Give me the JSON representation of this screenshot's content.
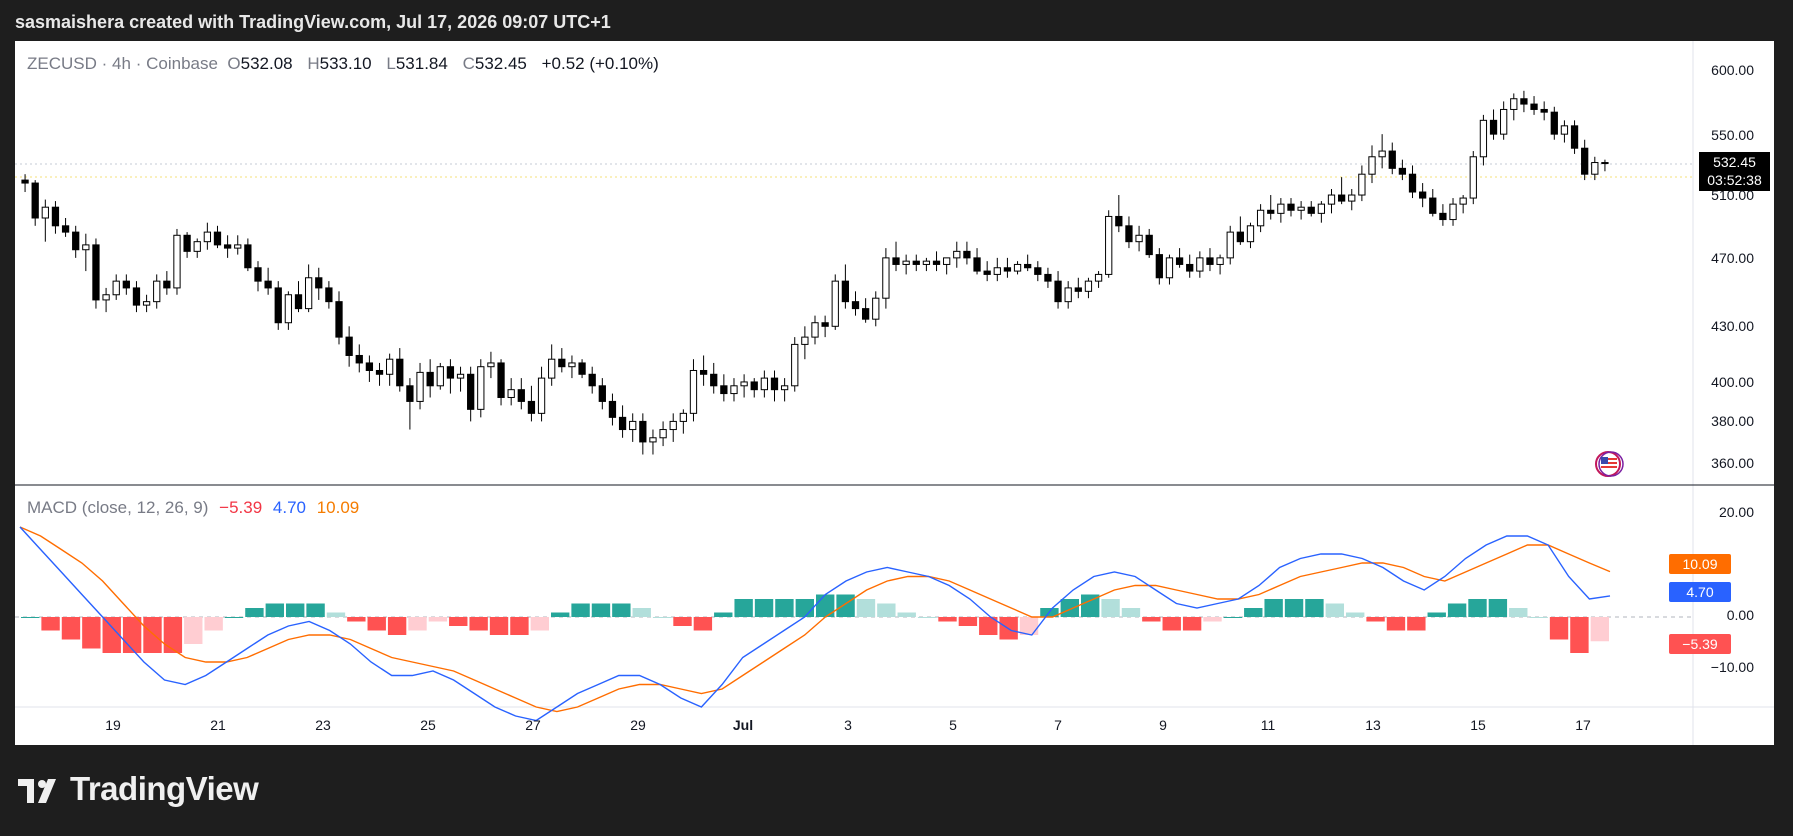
{
  "header": {
    "caption": "sasmaishera created with TradingView.com, Jul 17, 2026 09:07 UTC+1"
  },
  "legend": {
    "symbol": "ZECUSD",
    "sep1": "·",
    "interval": "4h",
    "sep2": "·",
    "exchange": "Coinbase",
    "o_label": "O",
    "o_value": "532.08",
    "h_label": "H",
    "h_value": "533.10",
    "l_label": "L",
    "l_value": "531.84",
    "c_label": "C",
    "c_value": "532.45",
    "change": "+0.52 (+0.10%)"
  },
  "macd_legend": {
    "title": "MACD (close, 12, 26, 9)",
    "histogram": "−5.39",
    "macd": "4.70",
    "signal": "10.09"
  },
  "last_price": {
    "value": "532.45",
    "countdown": "03:52:38"
  },
  "macd_badges": {
    "signal": "10.09",
    "macd": "4.70",
    "histogram": "−5.39"
  },
  "colors": {
    "up": "#ffffff",
    "down": "#000000",
    "hist_pos_strong": "#26a69a",
    "hist_pos_weak": "#b2dfdb",
    "hist_neg_strong": "#ff5252",
    "hist_neg_weak": "#ffcdd2",
    "macd_line": "#2962ff",
    "signal_line": "#ff6d00"
  },
  "footer": {
    "brand": "TradingView"
  },
  "chart_data": [
    {
      "type": "candlestick",
      "title": "ZECUSD · 4h · Coinbase",
      "y_scale": "log",
      "y_ticks": [
        "600.00",
        "550.00",
        "510.00",
        "470.00",
        "430.00",
        "400.00",
        "380.00",
        "360.00"
      ],
      "x_ticks": [
        "19",
        "21",
        "23",
        "25",
        "27",
        "29",
        "Jul",
        "3",
        "5",
        "7",
        "9",
        "11",
        "13",
        "15",
        "17"
      ],
      "x_range": [
        "Jun 17",
        "Jul 17"
      ],
      "candles_ohlc": [
        [
          520,
          524,
          512,
          518
        ],
        [
          518,
          520,
          490,
          495
        ],
        [
          495,
          507,
          480,
          502
        ],
        [
          502,
          506,
          485,
          490
        ],
        [
          490,
          495,
          483,
          486
        ],
        [
          486,
          490,
          470,
          475
        ],
        [
          475,
          485,
          462,
          478
        ],
        [
          478,
          482,
          440,
          445
        ],
        [
          445,
          452,
          438,
          448
        ],
        [
          448,
          460,
          445,
          456
        ],
        [
          456,
          460,
          448,
          452
        ],
        [
          452,
          456,
          438,
          442
        ],
        [
          442,
          448,
          438,
          444
        ],
        [
          444,
          460,
          440,
          456
        ],
        [
          456,
          462,
          448,
          452
        ],
        [
          452,
          488,
          448,
          484
        ],
        [
          484,
          486,
          470,
          474
        ],
        [
          474,
          482,
          470,
          480
        ],
        [
          480,
          492,
          475,
          486
        ],
        [
          486,
          490,
          476,
          478
        ],
        [
          478,
          484,
          470,
          476
        ],
        [
          476,
          484,
          472,
          478
        ],
        [
          478,
          482,
          462,
          464
        ],
        [
          464,
          468,
          450,
          456
        ],
        [
          456,
          464,
          448,
          452
        ],
        [
          452,
          456,
          428,
          432
        ],
        [
          432,
          450,
          428,
          448
        ],
        [
          448,
          456,
          438,
          440
        ],
        [
          440,
          466,
          438,
          458
        ],
        [
          458,
          464,
          445,
          452
        ],
        [
          452,
          456,
          440,
          444
        ],
        [
          444,
          450,
          420,
          424
        ],
        [
          424,
          430,
          408,
          414
        ],
        [
          414,
          420,
          405,
          410
        ],
        [
          410,
          414,
          400,
          406
        ],
        [
          406,
          410,
          398,
          404
        ],
        [
          404,
          415,
          398,
          412
        ],
        [
          412,
          418,
          395,
          398
        ],
        [
          398,
          402,
          376,
          390
        ],
        [
          390,
          410,
          386,
          405
        ],
        [
          405,
          412,
          392,
          398
        ],
        [
          398,
          410,
          396,
          408
        ],
        [
          408,
          412,
          394,
          402
        ],
        [
          402,
          408,
          395,
          404
        ],
        [
          404,
          408,
          380,
          386
        ],
        [
          386,
          412,
          382,
          408
        ],
        [
          408,
          416,
          402,
          410
        ],
        [
          410,
          412,
          388,
          392
        ],
        [
          392,
          402,
          388,
          396
        ],
        [
          396,
          402,
          386,
          390
        ],
        [
          390,
          398,
          380,
          384
        ],
        [
          384,
          408,
          380,
          402
        ],
        [
          402,
          420,
          398,
          412
        ],
        [
          412,
          418,
          405,
          408
        ],
        [
          408,
          414,
          402,
          410
        ],
        [
          410,
          412,
          402,
          404
        ],
        [
          404,
          408,
          394,
          398
        ],
        [
          398,
          402,
          386,
          390
        ],
        [
          390,
          394,
          378,
          382
        ],
        [
          382,
          388,
          372,
          376
        ],
        [
          376,
          384,
          370,
          380
        ],
        [
          380,
          384,
          364,
          370
        ],
        [
          370,
          376,
          364,
          372
        ],
        [
          372,
          380,
          368,
          376
        ],
        [
          376,
          384,
          370,
          380
        ],
        [
          380,
          386,
          374,
          384
        ],
        [
          384,
          412,
          380,
          406
        ],
        [
          406,
          414,
          398,
          404
        ],
        [
          404,
          410,
          394,
          398
        ],
        [
          398,
          404,
          390,
          394
        ],
        [
          394,
          402,
          390,
          398
        ],
        [
          398,
          404,
          392,
          400
        ],
        [
          400,
          402,
          392,
          396
        ],
        [
          396,
          406,
          392,
          402
        ],
        [
          402,
          406,
          390,
          396
        ],
        [
          396,
          402,
          390,
          398
        ],
        [
          398,
          424,
          395,
          420
        ],
        [
          420,
          430,
          412,
          424
        ],
        [
          424,
          436,
          420,
          432
        ],
        [
          432,
          436,
          424,
          430
        ],
        [
          430,
          460,
          428,
          456
        ],
        [
          456,
          466,
          440,
          444
        ],
        [
          444,
          450,
          436,
          440
        ],
        [
          440,
          446,
          432,
          434
        ],
        [
          434,
          450,
          430,
          446
        ],
        [
          446,
          476,
          440,
          470
        ],
        [
          470,
          480,
          462,
          466
        ],
        [
          466,
          472,
          460,
          468
        ],
        [
          468,
          472,
          462,
          466
        ],
        [
          466,
          470,
          462,
          468
        ],
        [
          468,
          474,
          462,
          466
        ],
        [
          466,
          470,
          460,
          470
        ],
        [
          470,
          480,
          464,
          474
        ],
        [
          474,
          480,
          466,
          470
        ],
        [
          470,
          476,
          460,
          462
        ],
        [
          462,
          468,
          456,
          460
        ],
        [
          460,
          470,
          456,
          464
        ],
        [
          464,
          470,
          458,
          462
        ],
        [
          462,
          468,
          460,
          466
        ],
        [
          466,
          472,
          462,
          464
        ],
        [
          464,
          468,
          456,
          460
        ],
        [
          460,
          464,
          452,
          456
        ],
        [
          456,
          462,
          440,
          444
        ],
        [
          444,
          456,
          440,
          452
        ],
        [
          452,
          458,
          446,
          450
        ],
        [
          450,
          458,
          446,
          456
        ],
        [
          456,
          462,
          452,
          460
        ],
        [
          460,
          500,
          458,
          496
        ],
        [
          496,
          510,
          486,
          490
        ],
        [
          490,
          496,
          476,
          480
        ],
        [
          480,
          490,
          474,
          484
        ],
        [
          484,
          488,
          470,
          472
        ],
        [
          472,
          476,
          454,
          458
        ],
        [
          458,
          472,
          454,
          470
        ],
        [
          470,
          476,
          464,
          466
        ],
        [
          466,
          472,
          458,
          462
        ],
        [
          462,
          474,
          458,
          470
        ],
        [
          470,
          476,
          462,
          466
        ],
        [
          466,
          472,
          460,
          470
        ],
        [
          470,
          490,
          466,
          486
        ],
        [
          486,
          496,
          478,
          480
        ],
        [
          480,
          492,
          476,
          490
        ],
        [
          490,
          504,
          486,
          500
        ],
        [
          500,
          510,
          494,
          498
        ],
        [
          498,
          508,
          492,
          504
        ],
        [
          504,
          508,
          496,
          500
        ],
        [
          500,
          506,
          494,
          502
        ],
        [
          502,
          506,
          496,
          498
        ],
        [
          498,
          506,
          492,
          504
        ],
        [
          504,
          514,
          498,
          510
        ],
        [
          510,
          522,
          504,
          506
        ],
        [
          506,
          514,
          500,
          510
        ],
        [
          510,
          530,
          506,
          524
        ],
        [
          524,
          544,
          518,
          536
        ],
        [
          536,
          552,
          528,
          540
        ],
        [
          540,
          546,
          524,
          528
        ],
        [
          528,
          534,
          520,
          524
        ],
        [
          524,
          530,
          508,
          512
        ],
        [
          512,
          518,
          502,
          508
        ],
        [
          508,
          514,
          496,
          498
        ],
        [
          498,
          504,
          490,
          494
        ],
        [
          494,
          508,
          490,
          504
        ],
        [
          504,
          510,
          498,
          508
        ],
        [
          508,
          540,
          504,
          536
        ],
        [
          536,
          566,
          530,
          562
        ],
        [
          562,
          570,
          548,
          552
        ],
        [
          552,
          576,
          548,
          570
        ],
        [
          570,
          582,
          562,
          578
        ],
        [
          578,
          584,
          568,
          574
        ],
        [
          574,
          580,
          566,
          570
        ],
        [
          570,
          576,
          562,
          568
        ],
        [
          568,
          572,
          548,
          552
        ],
        [
          552,
          562,
          546,
          558
        ],
        [
          558,
          562,
          538,
          542
        ],
        [
          542,
          548,
          520,
          524
        ],
        [
          524,
          536,
          520,
          532
        ],
        [
          532,
          534,
          526,
          532
        ]
      ]
    },
    {
      "type": "line",
      "title": "MACD (close, 12, 26, 9)",
      "y_ticks": [
        "20.00",
        "0.00",
        "−10.00"
      ],
      "series": [
        {
          "name": "MACD",
          "values": [
            20,
            15,
            10,
            5,
            0,
            -5,
            -10,
            -14,
            -15,
            -13,
            -10,
            -7,
            -4,
            -2,
            -1,
            -3,
            -6,
            -10,
            -13,
            -13,
            -12,
            -14,
            -17,
            -20,
            -22,
            -23,
            -20,
            -17,
            -15,
            -13,
            -13,
            -15,
            -18,
            -20,
            -15,
            -9,
            -6,
            -3,
            0,
            5,
            8,
            10,
            11,
            10,
            9,
            7,
            4,
            0,
            -3,
            -4,
            2,
            6,
            9,
            10,
            9,
            6,
            3,
            2,
            3,
            4,
            7,
            11,
            13,
            14,
            14,
            13,
            11,
            8,
            6,
            9,
            13,
            16,
            18,
            18,
            16,
            9,
            4,
            4.7
          ]
        },
        {
          "name": "Signal",
          "values": [
            20,
            18,
            15,
            12,
            8,
            3,
            -2,
            -6,
            -9,
            -10,
            -10,
            -9,
            -7,
            -5,
            -4,
            -4,
            -5,
            -7,
            -9,
            -10,
            -11,
            -12,
            -14,
            -16,
            -18,
            -20,
            -21,
            -20,
            -18,
            -16,
            -15,
            -15,
            -16,
            -17,
            -16,
            -13,
            -10,
            -7,
            -4,
            0,
            3,
            6,
            8,
            9,
            9,
            8,
            6,
            4,
            2,
            0,
            0,
            2,
            4,
            6,
            7,
            7,
            6,
            5,
            4,
            4,
            5,
            7,
            9,
            10,
            11,
            12,
            12,
            11,
            9,
            8,
            10,
            12,
            14,
            16,
            16,
            14,
            12,
            10.09
          ]
        },
        {
          "name": "Histogram",
          "values": [
            0,
            -3,
            -5,
            -7,
            -8,
            -8,
            -8,
            -8,
            -6,
            -3,
            0,
            2,
            3,
            3,
            3,
            1,
            -1,
            -3,
            -4,
            -3,
            -1,
            -2,
            -3,
            -4,
            -4,
            -3,
            1,
            3,
            3,
            3,
            2,
            0,
            -2,
            -3,
            1,
            4,
            4,
            4,
            4,
            5,
            5,
            4,
            3,
            1,
            0,
            -1,
            -2,
            -4,
            -5,
            -4,
            2,
            4,
            5,
            4,
            2,
            -1,
            -3,
            -3,
            -1,
            0,
            2,
            4,
            4,
            4,
            3,
            1,
            -1,
            -3,
            -3,
            1,
            3,
            4,
            4,
            2,
            0,
            -5,
            -8,
            -5.39
          ]
        }
      ]
    }
  ]
}
